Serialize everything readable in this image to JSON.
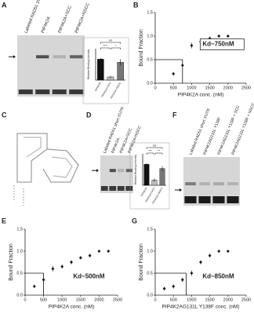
{
  "panel_labels": [
    "A",
    "B",
    "C",
    "D",
    "E",
    "F",
    "G"
  ],
  "gels": [
    {
      "lanes": [
        "Labeled RAD51 3'UTR",
        "PIP4K2A",
        "PIP4K2A+SCC",
        "PIP4K2A+NSCC"
      ]
    },
    {
      "lanes": [
        "Labeled RAD51 short 3'UTR",
        "PIP4K2A",
        "PIP4K2A+SCC",
        "PIP4K2A+NSCC"
      ]
    },
    {
      "lanes": [
        "Labeled RAD51 short 3'UTR",
        "PIP4K2AG131L Y138F",
        "PIP4K2AG131L Y138F + SCC",
        "PIP4K2AG131L Y138F + NSCC"
      ]
    }
  ],
  "chart_data": [
    {
      "type": "bar",
      "y_label": "Relative Binding Intensity",
      "categories": [
        "PIP4K2A",
        "PIP4K2A+SCC",
        "PIP4K2A+NSCC"
      ],
      "values": [
        1.0,
        0.15,
        0.85
      ],
      "errors": [
        0.05,
        0.06,
        0.15
      ],
      "colors": [
        "#111111",
        "#bbbbbb",
        "#777777"
      ],
      "significance": [
        "ns",
        "****",
        "*"
      ],
      "ylim": [
        0,
        1.5
      ]
    },
    {
      "type": "scatter",
      "y_label": "Bound Fraction",
      "x_label": "PIP4K2A conc. (nM)",
      "annotation": "Kd~750nM",
      "annotation_box": true,
      "x": [
        500,
        750,
        1000,
        1250,
        1500,
        1750,
        2000
      ],
      "values": [
        0.2,
        0.38,
        0.8,
        0.88,
        0.95,
        1.0,
        1.0
      ],
      "errors": [
        0.04,
        0.05,
        0.06,
        0.05,
        0.04,
        0.03,
        0.03
      ],
      "reference_lines": {
        "x": 750,
        "y": 0.5
      },
      "xlim": [
        0,
        2500
      ],
      "xticks": [
        0,
        500,
        1000,
        1500,
        2000,
        2500
      ],
      "ylim": [
        0,
        1.5
      ],
      "yticks": [
        {
          "value": 0,
          "label": "0.0"
        },
        0.5,
        {
          "value": 1,
          "label": "1.0"
        },
        1.5
      ]
    },
    {
      "type": "bar",
      "y_label": "Relative Binding Intensity",
      "categories": [
        "PIP4K2A",
        "PIP4K2A+SCC",
        "PIP4K2A+NSCC"
      ],
      "values": [
        1.0,
        0.25,
        0.8
      ],
      "errors": [
        0.05,
        0.08,
        0.12
      ],
      "colors": [
        "#111111",
        "#bbbbbb",
        "#777777"
      ],
      "significance": [
        "ns",
        "***",
        "**"
      ],
      "ylim": [
        0,
        1.5
      ]
    },
    {
      "type": "scatter",
      "y_label": "Bound Fraction",
      "x_label": "PIP4K2A conc. (nM)",
      "annotation": "Kd~500nM",
      "annotation_box": false,
      "x": [
        250,
        500,
        750,
        1000,
        1250,
        1500,
        1750,
        2000,
        2250
      ],
      "values": [
        0.2,
        0.35,
        0.6,
        0.65,
        0.75,
        0.85,
        0.9,
        1.0,
        1.0
      ],
      "errors": [
        0.04,
        0.05,
        0.06,
        0.05,
        0.05,
        0.04,
        0.04,
        0.03,
        0.03
      ],
      "reference_lines": {
        "x": 500,
        "y": 0.5
      },
      "xlim": [
        0,
        2500
      ],
      "xticks": [
        0,
        500,
        1000,
        1500,
        2000,
        2500
      ],
      "ylim": [
        0,
        1.5
      ],
      "yticks": [
        {
          "value": 0,
          "label": "0.0"
        },
        0.5,
        {
          "value": 1,
          "label": "1.0"
        },
        1.5
      ]
    },
    {
      "type": "scatter",
      "y_label": "Bound Fraction",
      "x_label": "PIP4K2AG131L Y138F conc. (nM)",
      "annotation": "Kd~850nM",
      "annotation_box": false,
      "x": [
        250,
        500,
        750,
        1000,
        1250,
        1500,
        1750,
        2000
      ],
      "values": [
        0.15,
        0.2,
        0.35,
        0.5,
        0.75,
        0.9,
        1.0,
        1.0
      ],
      "errors": [
        0.04,
        0.05,
        0.05,
        0.06,
        0.05,
        0.04,
        0.03,
        0.03
      ],
      "reference_lines": {
        "x": 850,
        "y": 0.5
      },
      "xlim": [
        0,
        2500
      ],
      "xticks": [
        0,
        500,
        1000,
        1500,
        2000,
        2500
      ],
      "ylim": [
        0,
        1.5
      ],
      "yticks": [
        {
          "value": 0,
          "label": "0.0"
        },
        0.5,
        {
          "value": 1,
          "label": "1.0"
        },
        1.5
      ]
    }
  ]
}
